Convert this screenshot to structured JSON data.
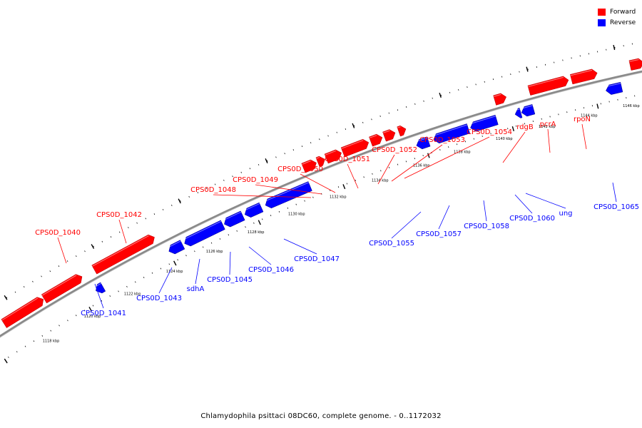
{
  "caption": "Chlamydophila psittaci 08DC60, complete genome. - 0..1172032",
  "colors": {
    "forward": "#ff0000",
    "reverse": "#0000ff"
  },
  "legend": [
    {
      "key": "forward",
      "label": "Forward"
    },
    {
      "key": "reverse",
      "label": "Reverse"
    }
  ],
  "ticks": [
    "1118 kbp",
    "1120 kbp",
    "1122 kbp",
    "1124 kbp",
    "1126 kbp",
    "1128 kbp",
    "1130 kbp",
    "1132 kbp",
    "1134 kbp",
    "1136 kbp",
    "1138 kbp",
    "1140 kbp",
    "1142 kbp",
    "1144 kbp",
    "1146 kbp"
  ],
  "genes": {
    "forward": [
      "CPS0D_1040",
      "CPS0D_1042",
      "CPS0D_1048",
      "CPS0D_1049",
      "CPS0D_1050",
      "CPS0D_1051",
      "CPS0D_1052",
      "CPS0D_1053",
      "CPS0D_1054",
      "rdgB",
      "pcrA",
      "rpoN"
    ],
    "reverse": [
      "CPS0D_1041",
      "CPS0D_1043",
      "sdhA",
      "CPS0D_1045",
      "CPS0D_1046",
      "CPS0D_1047",
      "CPS0D_1055",
      "CPS0D_1057",
      "CPS0D_1058",
      "CPS0D_1060",
      "ung",
      "CPS0D_1065"
    ]
  }
}
